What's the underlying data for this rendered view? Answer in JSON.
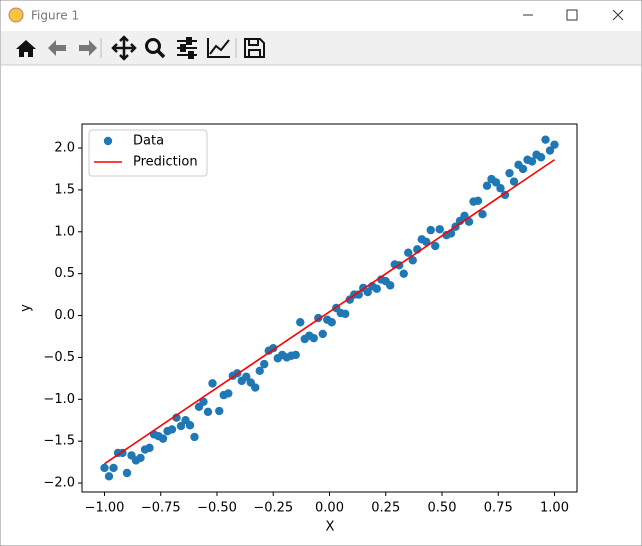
{
  "window": {
    "title": "Figure 1"
  },
  "chart_data": {
    "type": "scatter",
    "xlabel": "X",
    "ylabel": "y",
    "xlim": [
      -1.1,
      1.1
    ],
    "ylim": [
      -2.107,
      2.287
    ],
    "xticks": [
      {
        "value": -1,
        "label": "−1.00"
      },
      {
        "value": -0.75,
        "label": "−0.75"
      },
      {
        "value": -0.5,
        "label": "−0.50"
      },
      {
        "value": -0.25,
        "label": "−0.25"
      },
      {
        "value": 0,
        "label": "0.00"
      },
      {
        "value": 0.25,
        "label": "0.25"
      },
      {
        "value": 0.5,
        "label": "0.50"
      },
      {
        "value": 0.75,
        "label": "0.75"
      },
      {
        "value": 1,
        "label": "1.00"
      }
    ],
    "yticks": [
      {
        "value": -2,
        "label": "−2.0"
      },
      {
        "value": -1.5,
        "label": "−1.5"
      },
      {
        "value": -1,
        "label": "−1.0"
      },
      {
        "value": -0.5,
        "label": "−0.5"
      },
      {
        "value": 0,
        "label": "0.0"
      },
      {
        "value": 0.5,
        "label": "0.5"
      },
      {
        "value": 1,
        "label": "1.0"
      },
      {
        "value": 1.5,
        "label": "1.5"
      },
      {
        "value": 2,
        "label": "2.0"
      }
    ],
    "legend": "upper left",
    "series": [
      {
        "name": "Data",
        "type": "scatter",
        "color": "#1f77b4",
        "x": [
          -1.0,
          -0.98,
          -0.96,
          -0.94,
          -0.92,
          -0.9,
          -0.88,
          -0.86,
          -0.84,
          -0.82,
          -0.8,
          -0.78,
          -0.76,
          -0.74,
          -0.72,
          -0.7,
          -0.68,
          -0.66,
          -0.64,
          -0.62,
          -0.6,
          -0.58,
          -0.56,
          -0.54,
          -0.52,
          -0.49,
          -0.47,
          -0.45,
          -0.43,
          -0.41,
          -0.39,
          -0.37,
          -0.35,
          -0.33,
          -0.31,
          -0.29,
          -0.27,
          -0.25,
          -0.23,
          -0.21,
          -0.19,
          -0.17,
          -0.15,
          -0.13,
          -0.11,
          -0.09,
          -0.07,
          -0.05,
          -0.03,
          -0.01,
          0.01,
          0.03,
          0.05,
          0.07,
          0.09,
          0.11,
          0.13,
          0.15,
          0.17,
          0.19,
          0.21,
          0.23,
          0.25,
          0.27,
          0.29,
          0.31,
          0.33,
          0.35,
          0.37,
          0.39,
          0.41,
          0.43,
          0.45,
          0.47,
          0.49,
          0.52,
          0.54,
          0.56,
          0.58,
          0.6,
          0.62,
          0.64,
          0.66,
          0.68,
          0.7,
          0.72,
          0.74,
          0.76,
          0.78,
          0.8,
          0.82,
          0.84,
          0.86,
          0.88,
          0.9,
          0.92,
          0.94,
          0.96,
          0.98,
          1.0
        ],
        "values": [
          -1.82,
          -1.92,
          -1.82,
          -1.64,
          -1.64,
          -1.88,
          -1.67,
          -1.73,
          -1.7,
          -1.6,
          -1.58,
          -1.42,
          -1.44,
          -1.47,
          -1.38,
          -1.36,
          -1.22,
          -1.32,
          -1.25,
          -1.31,
          -1.45,
          -1.09,
          -1.03,
          -1.15,
          -0.81,
          -1.14,
          -0.95,
          -0.93,
          -0.72,
          -0.69,
          -0.78,
          -0.73,
          -0.8,
          -0.86,
          -0.66,
          -0.58,
          -0.42,
          -0.39,
          -0.51,
          -0.47,
          -0.5,
          -0.48,
          -0.47,
          -0.08,
          -0.28,
          -0.24,
          -0.27,
          -0.03,
          -0.22,
          -0.05,
          -0.08,
          0.09,
          0.03,
          0.02,
          0.19,
          0.25,
          0.25,
          0.33,
          0.28,
          0.35,
          0.32,
          0.43,
          0.41,
          0.36,
          0.61,
          0.6,
          0.5,
          0.75,
          0.66,
          0.79,
          0.91,
          0.88,
          1.02,
          0.83,
          1.03,
          0.96,
          0.98,
          1.06,
          1.13,
          1.19,
          1.12,
          1.36,
          1.37,
          1.21,
          1.55,
          1.63,
          1.59,
          1.52,
          1.44,
          1.7,
          1.6,
          1.8,
          1.75,
          1.86,
          1.84,
          1.92,
          1.89,
          2.1,
          1.97,
          2.04
        ]
      },
      {
        "name": "Prediction",
        "type": "line",
        "color": "#ff0000",
        "x": [
          -1,
          1
        ],
        "values": [
          -1.77,
          1.86
        ]
      }
    ]
  }
}
